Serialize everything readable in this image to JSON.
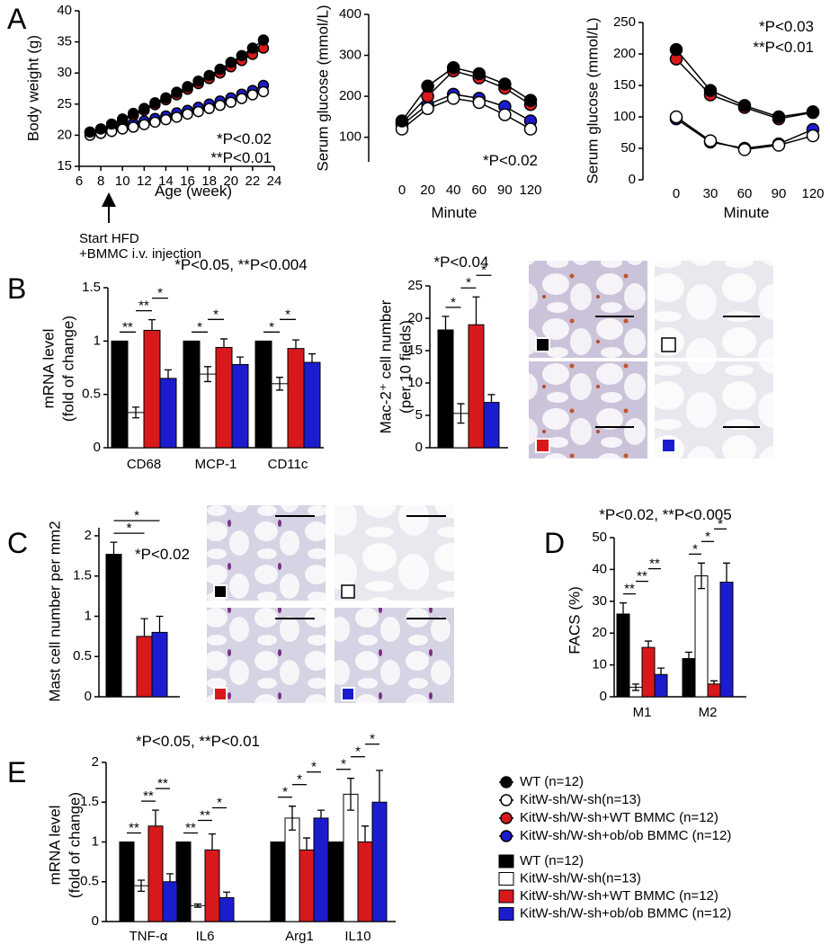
{
  "panel_labels": [
    "A",
    "B",
    "C",
    "D",
    "E"
  ],
  "chart_data": [
    {
      "type": "line",
      "ylabel": [
        "Body weight (g)"
      ],
      "xlabel": "Age (week)",
      "x": [
        7,
        8,
        9,
        10,
        11,
        12,
        13,
        14,
        15,
        16,
        17,
        18,
        19,
        20,
        21,
        22,
        23
      ],
      "xlim": [
        6,
        24
      ],
      "xticks": [
        6,
        8,
        10,
        12,
        14,
        16,
        18,
        20,
        22,
        24
      ],
      "ylim": [
        15,
        40
      ],
      "yticks": [
        15,
        20,
        25,
        30,
        35,
        40
      ],
      "annotations": [
        "*P<0.02",
        "**P<0.01"
      ],
      "note": [
        "Start HFD",
        "+BMMC i.v. injection"
      ],
      "series": [
        {
          "name": "WT (n=12)",
          "color": "#000000",
          "values": [
            20.5,
            21,
            21.8,
            22.6,
            23.5,
            24.3,
            25.2,
            26,
            26.9,
            27.8,
            28.7,
            29.6,
            30.6,
            31.7,
            32.8,
            34,
            35.3
          ]
        },
        {
          "name": "KitW-sh/W-sh(n=13)",
          "color": "#ffffff",
          "values": [
            20,
            20.3,
            20.6,
            21,
            21.3,
            21.7,
            22.1,
            22.5,
            22.9,
            23.4,
            23.8,
            24.3,
            24.8,
            25.3,
            25.9,
            26.5,
            27
          ]
        },
        {
          "name": "KitW-sh/W-sh+WT BMMC (n=12)",
          "color": "#d7191c",
          "values": [
            20.5,
            21,
            21.6,
            22.3,
            23.2,
            24,
            24.9,
            25.7,
            26.5,
            27.4,
            28.3,
            29.1,
            30,
            31,
            32,
            33,
            34
          ]
        },
        {
          "name": "KitW-sh/W-sh+ob/ob BMMC (n=12)",
          "color": "#1c1ccf",
          "values": [
            20.5,
            20.8,
            21.1,
            21.5,
            21.9,
            22.3,
            22.7,
            23.1,
            23.6,
            24,
            24.5,
            25,
            25.5,
            26,
            26.6,
            27.2,
            28
          ]
        }
      ]
    },
    {
      "type": "line",
      "ylabel": [
        "Serum glucose (mmol/L)"
      ],
      "xlabel": "Minute",
      "categories": [
        "0",
        "20",
        "40",
        "60",
        "90",
        "120"
      ],
      "ylim": [
        40,
        400
      ],
      "yticks": [
        100,
        200,
        300,
        400
      ],
      "annotations": [
        "*P<0.02"
      ],
      "series": [
        {
          "color": "#000000",
          "values": [
            140,
            225,
            270,
            255,
            230,
            190
          ]
        },
        {
          "color": "#ffffff",
          "values": [
            120,
            170,
            195,
            185,
            155,
            120
          ]
        },
        {
          "color": "#d7191c",
          "values": [
            135,
            200,
            262,
            245,
            220,
            180
          ]
        },
        {
          "color": "#1c1ccf",
          "values": [
            130,
            180,
            205,
            195,
            175,
            140
          ]
        }
      ]
    },
    {
      "type": "line",
      "ylabel": [
        "Serum glucose (mmol/L)"
      ],
      "xlabel": "Minute",
      "categories": [
        "0",
        "30",
        "60",
        "90",
        "120"
      ],
      "ylim": [
        0,
        250
      ],
      "yticks": [
        0,
        50,
        100,
        150,
        200,
        250
      ],
      "annotations": [
        "*P<0.03",
        "**P<0.01"
      ],
      "series": [
        {
          "color": "#000000",
          "values": [
            207,
            142,
            118,
            100,
            108
          ]
        },
        {
          "color": "#ffffff",
          "values": [
            100,
            62,
            48,
            55,
            70
          ]
        },
        {
          "color": "#d7191c",
          "values": [
            192,
            135,
            115,
            97,
            107
          ]
        },
        {
          "color": "#1c1ccf",
          "values": [
            97,
            60,
            50,
            57,
            80
          ]
        }
      ]
    },
    {
      "type": "bar",
      "title": "*P<0.05, **P<0.004",
      "ylabel": [
        "mRNA level",
        "(fold of change)"
      ],
      "categories": [
        "CD68",
        "MCP-1",
        "CD11c"
      ],
      "ylim": [
        0,
        1.5
      ],
      "yticks": [
        0,
        0.5,
        1,
        1.5
      ],
      "series": [
        {
          "color": "#000000",
          "values": [
            1,
            1,
            1
          ],
          "errors": [
            0,
            0,
            0
          ]
        },
        {
          "color": "#ffffff",
          "values": [
            0.33,
            0.69,
            0.6
          ],
          "errors": [
            0.05,
            0.07,
            0.06
          ]
        },
        {
          "color": "#d7191c",
          "values": [
            1.1,
            0.94,
            0.93
          ],
          "errors": [
            0.1,
            0.08,
            0.08
          ]
        },
        {
          "color": "#1c1ccf",
          "values": [
            0.65,
            0.78,
            0.8
          ],
          "errors": [
            0.08,
            0.07,
            0.08
          ]
        }
      ],
      "brackets": [
        {
          "category": 0,
          "from": 0,
          "to": 1,
          "label": "**"
        },
        {
          "category": 0,
          "from": 1,
          "to": 2,
          "label": "**"
        },
        {
          "category": 0,
          "from": 2,
          "to": 3,
          "label": "*"
        },
        {
          "category": 1,
          "from": 0,
          "to": 1,
          "label": "*"
        },
        {
          "category": 1,
          "from": 1,
          "to": 2,
          "label": "*"
        },
        {
          "category": 2,
          "from": 0,
          "to": 1,
          "label": "*"
        },
        {
          "category": 2,
          "from": 1,
          "to": 2,
          "label": "*"
        }
      ]
    },
    {
      "type": "bar",
      "annotations": [
        "*P<0.04"
      ],
      "ylabel": [
        "Mac-2⁺ cell number",
        "(per 10 fields)"
      ],
      "categories": [
        null
      ],
      "ylim": [
        0,
        25
      ],
      "yticks": [
        0,
        5,
        10,
        15,
        20,
        25
      ],
      "series": [
        {
          "color": "#000000",
          "values": [
            18.2
          ],
          "errors": [
            2.1
          ]
        },
        {
          "color": "#ffffff",
          "values": [
            5.3
          ],
          "errors": [
            1.5
          ]
        },
        {
          "color": "#d7191c",
          "values": [
            19
          ],
          "errors": [
            4.3
          ]
        },
        {
          "color": "#1c1ccf",
          "values": [
            7
          ],
          "errors": [
            1.2
          ]
        }
      ],
      "brackets": [
        {
          "category": 0,
          "from": 0,
          "to": 1,
          "label": "*"
        },
        {
          "category": 0,
          "from": 1,
          "to": 2,
          "label": "*"
        },
        {
          "category": 0,
          "from": 2,
          "to": 3,
          "label": "*"
        }
      ]
    },
    {
      "type": "bar",
      "annotations": [
        "*P<0.02"
      ],
      "ylabel": [
        "Mast cell number per mm2"
      ],
      "categories": [
        null
      ],
      "ylim": [
        0,
        2.1
      ],
      "yticks": [
        0,
        0.5,
        1,
        1.5,
        2
      ],
      "series": [
        {
          "color": "#000000",
          "values": [
            1.77
          ],
          "errors": [
            0.15
          ]
        },
        {
          "color": "#ffffff",
          "values": [
            0
          ],
          "errors": [
            0
          ]
        },
        {
          "color": "#d7191c",
          "values": [
            0.75
          ],
          "errors": [
            0.22
          ]
        },
        {
          "color": "#1c1ccf",
          "values": [
            0.8
          ],
          "errors": [
            0.2
          ]
        }
      ],
      "brackets": [
        {
          "category": 0,
          "from": 0,
          "to": 2,
          "label": "*"
        },
        {
          "category": 0,
          "from": 0,
          "to": 3,
          "label": "*"
        }
      ]
    },
    {
      "type": "bar",
      "title": "*P<0.02, **P<0.005",
      "ylabel": [
        "FACS (%)"
      ],
      "categories": [
        "M1",
        "M2"
      ],
      "ylim": [
        0,
        50
      ],
      "yticks": [
        0,
        10,
        20,
        30,
        40,
        50
      ],
      "series": [
        {
          "color": "#000000",
          "values": [
            26,
            12
          ],
          "errors": [
            3.5,
            2
          ]
        },
        {
          "color": "#ffffff",
          "values": [
            3,
            38
          ],
          "errors": [
            1,
            4
          ]
        },
        {
          "color": "#d7191c",
          "values": [
            15.5,
            4
          ],
          "errors": [
            2,
            1
          ]
        },
        {
          "color": "#1c1ccf",
          "values": [
            7,
            36
          ],
          "errors": [
            2,
            6
          ]
        }
      ],
      "brackets": [
        {
          "category": 0,
          "from": 0,
          "to": 1,
          "label": "**"
        },
        {
          "category": 0,
          "from": 1,
          "to": 2,
          "label": "**"
        },
        {
          "category": 0,
          "from": 2,
          "to": 3,
          "label": "**"
        },
        {
          "category": 1,
          "from": 0,
          "to": 1,
          "label": "*"
        },
        {
          "category": 1,
          "from": 1,
          "to": 2,
          "label": "*"
        },
        {
          "category": 1,
          "from": 2,
          "to": 3,
          "label": "*"
        }
      ]
    },
    {
      "type": "bar",
      "title": "*P<0.05, **P<0.01",
      "ylabel": [
        "mRNA level",
        "(fold of change)"
      ],
      "categories": [
        "TNF-α",
        "IL6",
        "Arg1",
        "IL10"
      ],
      "ylim": [
        0,
        2
      ],
      "yticks": [
        0,
        0.5,
        1,
        1.5,
        2
      ],
      "series": [
        {
          "name": "WT (n=12)",
          "color": "#000000",
          "values": [
            1,
            1,
            1,
            1
          ],
          "errors": [
            0,
            0,
            0,
            0
          ]
        },
        {
          "name": "KitW-sh/W-sh(n=13)",
          "color": "#ffffff",
          "values": [
            0.45,
            0.2,
            1.3,
            1.6
          ],
          "errors": [
            0.07,
            0.02,
            0.15,
            0.2
          ]
        },
        {
          "name": "KitW-sh/W-sh+WT BMMC (n=12)",
          "color": "#d7191c",
          "values": [
            1.2,
            0.9,
            0.9,
            1
          ],
          "errors": [
            0.2,
            0.2,
            0.15,
            0.2
          ]
        },
        {
          "name": "KitW-sh/W-sh+ob/ob BMMC (n=12)",
          "color": "#1c1ccf",
          "values": [
            0.5,
            0.3,
            1.3,
            1.5
          ],
          "errors": [
            0.1,
            0.07,
            0.1,
            0.4
          ]
        }
      ],
      "brackets": [
        {
          "category": 0,
          "from": 0,
          "to": 1,
          "label": "**"
        },
        {
          "category": 0,
          "from": 1,
          "to": 2,
          "label": "**"
        },
        {
          "category": 0,
          "from": 2,
          "to": 3,
          "label": "**"
        },
        {
          "category": 1,
          "from": 0,
          "to": 1,
          "label": "**"
        },
        {
          "category": 1,
          "from": 1,
          "to": 2,
          "label": "**"
        },
        {
          "category": 1,
          "from": 2,
          "to": 3,
          "label": "*"
        },
        {
          "category": 2,
          "from": 0,
          "to": 1,
          "label": "*"
        },
        {
          "category": 2,
          "from": 1,
          "to": 2,
          "label": "*"
        },
        {
          "category": 2,
          "from": 2,
          "to": 3,
          "label": "*"
        },
        {
          "category": 3,
          "from": 0,
          "to": 1,
          "label": "*"
        },
        {
          "category": 3,
          "from": 1,
          "to": 2,
          "label": "*"
        },
        {
          "category": 3,
          "from": 2,
          "to": 3,
          "label": "*"
        }
      ]
    }
  ]
}
